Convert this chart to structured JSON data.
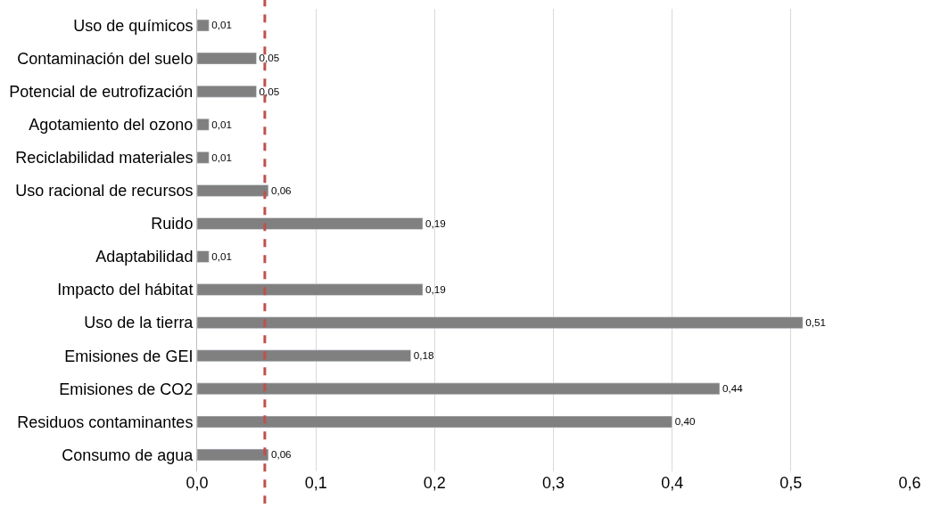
{
  "chart_data": {
    "type": "bar",
    "orientation": "horizontal",
    "categories": [
      "Uso de químicos",
      "Contaminación del suelo",
      "Potencial de eutrofización",
      "Agotamiento del ozono",
      "Reciclabilidad materiales",
      "Uso racional de recursos",
      "Ruido",
      "Adaptabilidad",
      "Impacto del hábitat",
      "Uso de la tierra",
      "Emisiones de GEI",
      "Emisiones de CO2",
      "Residuos contaminantes",
      "Consumo de agua"
    ],
    "values": [
      0.01,
      0.05,
      0.05,
      0.01,
      0.01,
      0.06,
      0.19,
      0.01,
      0.19,
      0.51,
      0.18,
      0.44,
      0.4,
      0.06
    ],
    "value_labels": [
      "0,01",
      "0,05",
      "0,05",
      "0,01",
      "0,01",
      "0,06",
      "0,19",
      "0,01",
      "0,19",
      "0,51",
      "0,18",
      "0,44",
      "0,40",
      "0,06"
    ],
    "color": "#808080",
    "xlim": [
      0,
      0.6
    ],
    "xticks": [
      {
        "value": 0,
        "label": "0,0"
      },
      {
        "value": 0.1,
        "label": "0,1"
      },
      {
        "value": 0.2,
        "label": "0,2"
      },
      {
        "value": 0.3,
        "label": "0,3"
      },
      {
        "value": 0.4,
        "label": "0,4"
      },
      {
        "value": 0.5,
        "label": "0,5"
      },
      {
        "value": 0.6,
        "label": "0,6"
      }
    ],
    "grid": "x",
    "ref_lines": [
      {
        "axis": "x",
        "value": 0.057,
        "color": "#c0504d",
        "line_style": "dashed"
      }
    ]
  }
}
